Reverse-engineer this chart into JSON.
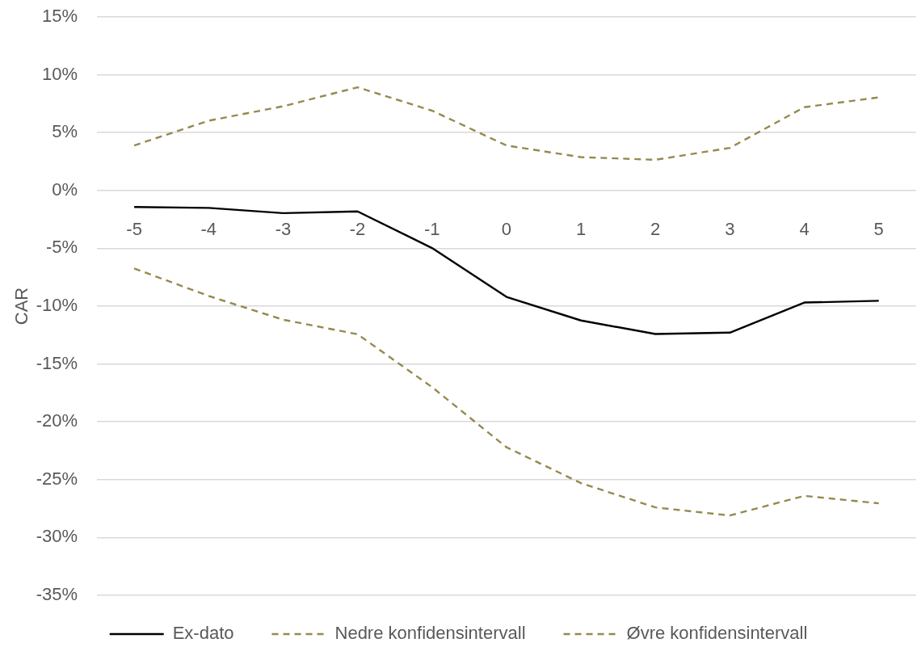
{
  "chart_data": {
    "type": "line",
    "ylabel": "CAR",
    "categories": [
      "-5",
      "-4",
      "-3",
      "-2",
      "-1",
      "0",
      "1",
      "2",
      "3",
      "4",
      "5"
    ],
    "series": [
      {
        "name": "Ex-dato",
        "color": "#000000",
        "line_style": "solid",
        "values": [
          -1.43,
          -1.51,
          -1.96,
          -1.81,
          -4.98,
          -9.2,
          -11.24,
          -12.41,
          -12.29,
          -9.69,
          -9.54
        ]
      },
      {
        "name": "Nedre konfidensintervall",
        "color": "#958a4f",
        "line_style": "dashed",
        "values": [
          -6.74,
          -9.12,
          -11.17,
          -12.43,
          -17.0,
          -22.2,
          -25.3,
          -27.4,
          -28.1,
          -26.4,
          -27.05
        ]
      },
      {
        "name": "Øvre konfidensintervall",
        "color": "#958a4f",
        "line_style": "dashed",
        "values": [
          3.89,
          6.03,
          7.28,
          8.92,
          6.9,
          3.89,
          2.88,
          2.65,
          3.68,
          7.2,
          8.05
        ]
      }
    ],
    "ylim": [
      -35,
      15
    ],
    "yticks": [
      {
        "value": -35,
        "label": "-35%"
      },
      {
        "value": -30,
        "label": "-30%"
      },
      {
        "value": -25,
        "label": "-25%"
      },
      {
        "value": -20,
        "label": "-20%"
      },
      {
        "value": -15,
        "label": "-15%"
      },
      {
        "value": -10,
        "label": "-10%"
      },
      {
        "value": -5,
        "label": "-5%"
      },
      {
        "value": 0,
        "label": "0%"
      },
      {
        "value": 5,
        "label": "5%"
      },
      {
        "value": 10,
        "label": "10%"
      },
      {
        "value": 15,
        "label": "15%"
      }
    ],
    "grid": "y",
    "legend": "bottom",
    "marker": "none"
  }
}
